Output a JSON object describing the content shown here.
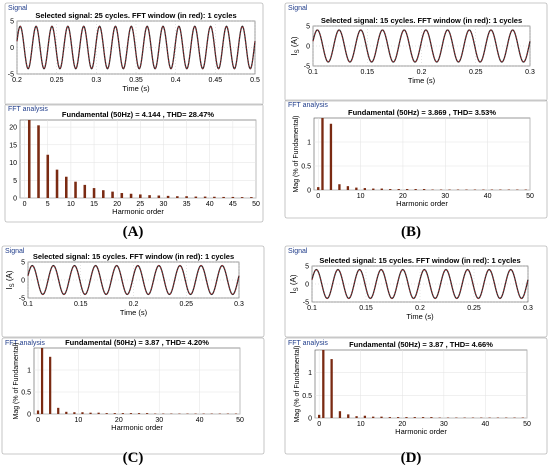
{
  "panels": [
    {
      "caption": "(A)",
      "signal_box_label": "Signal",
      "signal_title": "Selected signal: 25 cycles. FFT window (in red): 1 cycles",
      "signal_ylabel": "",
      "signal_xlabel": "Time (s)",
      "signal": {
        "t_start": 0.2,
        "t_end": 0.5,
        "cycles": 15,
        "amplitude": 4,
        "x_ticks": [
          "0.2",
          "0.25",
          "0.3",
          "0.35",
          "0.4",
          "0.45",
          "0.5"
        ],
        "y_ticks": [
          "5",
          "0",
          "-5"
        ],
        "ylim": [
          -5,
          5
        ]
      },
      "fft_box_label": "FFT analysis",
      "fft_title": "Fundamental (50Hz) = 4.144 , THD= 28.47%",
      "fft_ylabel": "",
      "fft_xlabel": "Harmonic order"
    },
    {
      "caption": "(B)",
      "signal_box_label": "Signal",
      "signal_title": "Selected signal: 15 cycles. FFT window (in red): 1 cycles",
      "signal_ylabel": "I_S (A)",
      "signal_xlabel": "Time (s)",
      "signal": {
        "t_start": 0.1,
        "t_end": 0.3,
        "cycles": 10,
        "amplitude": 4,
        "x_ticks": [
          "0.1",
          "0.15",
          "0.2",
          "0.25",
          "0.3"
        ],
        "y_ticks": [
          "5",
          "0",
          "-5"
        ],
        "ylim": [
          -5,
          5
        ]
      },
      "fft_box_label": "FFT analysis",
      "fft_title": "Fundamental (50Hz) = 3.869 , THD= 3.53%",
      "fft_ylabel": "Mag (% of Fundamental)",
      "fft_xlabel": "Harmonic order"
    },
    {
      "caption": "(C)",
      "signal_box_label": "Signal",
      "signal_title": "Selected signal: 15 cycles. FFT window (in red): 1 cycles",
      "signal_ylabel": "I_S (A)",
      "signal_xlabel": "Time (s)",
      "signal": {
        "t_start": 0.1,
        "t_end": 0.3,
        "cycles": 10,
        "amplitude": 4,
        "x_ticks": [
          "0.1",
          "0.15",
          "0.2",
          "0.25",
          "0.3"
        ],
        "y_ticks": [
          "5",
          "0",
          "-5"
        ],
        "ylim": [
          -5,
          5
        ]
      },
      "fft_box_label": "FFT analysis",
      "fft_title": "Fundamental (50Hz) = 3.87 , THD= 4.20%",
      "fft_ylabel": "Mag (% of Fundamental)",
      "fft_xlabel": "Harmonic order"
    },
    {
      "caption": "(D)",
      "signal_box_label": "Signal",
      "signal_title": "Selected signal: 15 cycles. FFT window (in red): 1 cycles",
      "signal_ylabel": "I_S (A)",
      "signal_xlabel": "Time (s)",
      "signal": {
        "t_start": 0.1,
        "t_end": 0.3,
        "cycles": 10,
        "amplitude": 4,
        "x_ticks": [
          "0.1",
          "0.15",
          "0.2",
          "0.25",
          "0.3"
        ],
        "y_ticks": [
          "5",
          "0",
          "-5"
        ],
        "ylim": [
          -5,
          5
        ]
      },
      "fft_box_label": "FFT analysis",
      "fft_title": "Fundamental (50Hz) = 3.87 , THD= 4.66%",
      "fft_ylabel": "Mag (% of Fundamental)",
      "fft_xlabel": "Harmonic order"
    }
  ],
  "chart_data": [
    {
      "type": "bar",
      "title": "Fundamental (50Hz) = 4.144 , THD= 28.47%",
      "xlabel": "Harmonic order",
      "ylabel": "",
      "ylim": [
        0,
        22
      ],
      "xlim": [
        -1,
        50
      ],
      "x_ticks": [
        0,
        5,
        10,
        15,
        20,
        25,
        30,
        35,
        40,
        45,
        50
      ],
      "y_ticks": [
        0,
        5,
        10,
        15,
        20
      ],
      "x": [
        1,
        3,
        5,
        7,
        9,
        11,
        13,
        15,
        17,
        19,
        21,
        23,
        25,
        27,
        29,
        31,
        33,
        35,
        37,
        39,
        41,
        43,
        45,
        47,
        49
      ],
      "values": [
        22,
        20.5,
        12.2,
        8,
        6,
        4.6,
        3.7,
        2.8,
        2.2,
        1.8,
        1.4,
        1.2,
        1.0,
        0.8,
        0.7,
        0.6,
        0.5,
        0.5,
        0.4,
        0.4,
        0.35,
        0.3,
        0.3,
        0.25,
        0.25
      ],
      "grid": true
    },
    {
      "type": "bar",
      "title": "Fundamental (50Hz) = 3.869 , THD= 3.53%",
      "xlabel": "Harmonic order",
      "ylabel": "Mag (% of Fundamental)",
      "ylim": [
        0,
        1.5
      ],
      "xlim": [
        -1,
        50
      ],
      "x_ticks": [
        0,
        10,
        20,
        30,
        40,
        50
      ],
      "y_ticks": [
        0,
        0.5,
        1
      ],
      "x": [
        0,
        1,
        3,
        5,
        7,
        9,
        11,
        13,
        15,
        17,
        19,
        21,
        23,
        25,
        27,
        29,
        31,
        33,
        35,
        37,
        39,
        41,
        43,
        45,
        47,
        49
      ],
      "values": [
        0.06,
        1.5,
        1.38,
        0.12,
        0.08,
        0.05,
        0.04,
        0.03,
        0.03,
        0.02,
        0.02,
        0.02,
        0.02,
        0.02,
        0.01,
        0.01,
        0.01,
        0.01,
        0.01,
        0.01,
        0.01,
        0.01,
        0.01,
        0.01,
        0.01,
        0.01
      ],
      "grid": true
    },
    {
      "type": "bar",
      "title": "Fundamental (50Hz) = 3.87 , THD= 4.20%",
      "xlabel": "Harmonic order",
      "ylabel": "Mag (% of Fundamental)",
      "ylim": [
        0,
        1.5
      ],
      "xlim": [
        -1,
        50
      ],
      "x_ticks": [
        0,
        10,
        20,
        30,
        40,
        50
      ],
      "y_ticks": [
        0,
        0.5,
        1
      ],
      "x": [
        0,
        1,
        3,
        5,
        7,
        9,
        11,
        13,
        15,
        17,
        19,
        21,
        23,
        25,
        27,
        29,
        31,
        33,
        35,
        37,
        39,
        41,
        43,
        45,
        47,
        49
      ],
      "values": [
        0.08,
        1.5,
        1.3,
        0.14,
        0.05,
        0.04,
        0.04,
        0.03,
        0.03,
        0.02,
        0.02,
        0.02,
        0.02,
        0.02,
        0.02,
        0.01,
        0.01,
        0.01,
        0.01,
        0.01,
        0.01,
        0.01,
        0.01,
        0.01,
        0.01,
        0.01
      ],
      "grid": true
    },
    {
      "type": "bar",
      "title": "Fundamental (50Hz) = 3.87 , THD= 4.66%",
      "xlabel": "Harmonic order",
      "ylabel": "Mag (% of Fundamental)",
      "ylim": [
        0,
        1.5
      ],
      "xlim": [
        -1,
        50
      ],
      "x_ticks": [
        0,
        10,
        20,
        30,
        40,
        50
      ],
      "y_ticks": [
        0,
        0.5,
        1
      ],
      "x": [
        0,
        1,
        3,
        5,
        7,
        9,
        11,
        13,
        15,
        17,
        19,
        21,
        23,
        25,
        27,
        29,
        31,
        33,
        35,
        37,
        39,
        41,
        43,
        45,
        47,
        49
      ],
      "values": [
        0.07,
        1.5,
        1.3,
        0.15,
        0.08,
        0.04,
        0.05,
        0.03,
        0.03,
        0.02,
        0.02,
        0.02,
        0.02,
        0.02,
        0.02,
        0.01,
        0.01,
        0.01,
        0.01,
        0.01,
        0.01,
        0.01,
        0.01,
        0.01,
        0.01,
        0.01
      ],
      "grid": true
    }
  ],
  "colors": {
    "signal_trace": "#2a2a2a",
    "fft_window": "#d0202a",
    "bar_fill": "#7a2a12",
    "grid": "#e2e2e2",
    "box_label": "#1f3c8a",
    "box_border": "#b7b7b7"
  }
}
